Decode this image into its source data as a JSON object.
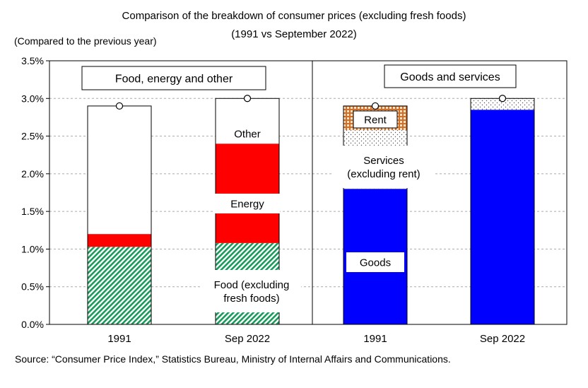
{
  "title": "Comparison of the breakdown of consumer prices (excluding fresh foods)",
  "subtitle": "(1991 vs September 2022)",
  "unit_label": "(Compared to the previous year)",
  "source": "Source: “Consumer Price Index,” Statistics Bureau, Ministry of Internal Affairs and Communications.",
  "colors": {
    "food": "#1a9a5a",
    "energy": "#ff0000",
    "other": "#ffffff",
    "goods": "#0000ff",
    "services": "#ffffff",
    "rent": "#d07028",
    "grid": "#aaaaaa"
  },
  "chart_data": [
    {
      "type": "bar",
      "stacked": true,
      "panel_label": "Food, energy and other",
      "categories": [
        "1991",
        "Sep 2022"
      ],
      "ylim": [
        0,
        3.5
      ],
      "yticks": [
        "0.0%",
        "0.5%",
        "1.0%",
        "1.5%",
        "2.0%",
        "2.5%",
        "3.0%",
        "3.5%"
      ],
      "grid": true,
      "series": [
        {
          "name": "Food (excluding fresh foods)",
          "values": [
            1.03,
            1.08
          ]
        },
        {
          "name": "Energy",
          "values": [
            0.17,
            1.32
          ]
        },
        {
          "name": "Other",
          "values": [
            1.7,
            0.6
          ]
        }
      ],
      "totals": [
        2.9,
        3.0
      ]
    },
    {
      "type": "bar",
      "stacked": true,
      "panel_label": "Goods and services",
      "categories": [
        "1991",
        "Sep 2022"
      ],
      "ylim": [
        0,
        3.5
      ],
      "grid": true,
      "series": [
        {
          "name": "Goods",
          "values": [
            1.8,
            2.85
          ]
        },
        {
          "name": "Services (excluding rent)",
          "values": [
            0.78,
            0.15
          ]
        },
        {
          "name": "Rent",
          "values": [
            0.32,
            0.0
          ]
        }
      ],
      "totals": [
        2.9,
        3.0
      ]
    }
  ]
}
